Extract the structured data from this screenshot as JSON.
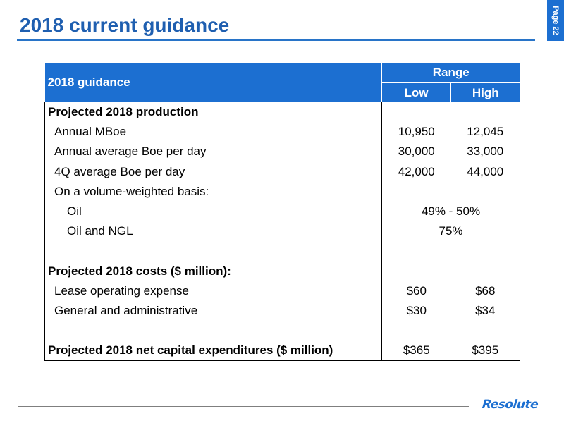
{
  "slide": {
    "title": "2018 current guidance",
    "page_label": "Page 22"
  },
  "table": {
    "header": {
      "label": "2018 guidance",
      "range": "Range",
      "low": "Low",
      "high": "High"
    },
    "rows": [
      {
        "label": "Projected 2018 production",
        "low": "",
        "high": ""
      },
      {
        "label": "Annual MBoe",
        "low": "10,950",
        "high": "12,045"
      },
      {
        "label": "Annual average Boe per day",
        "low": "30,000",
        "high": "33,000"
      },
      {
        "label": "4Q average Boe per day",
        "low": "42,000",
        "high": "44,000"
      },
      {
        "label": "On a volume-weighted basis:",
        "low": "",
        "high": ""
      },
      {
        "label": "Oil",
        "combined": "49% - 50%"
      },
      {
        "label": "Oil and NGL",
        "combined": "75%"
      },
      {
        "label": "",
        "low": "",
        "high": ""
      },
      {
        "label": "Projected 2018 costs ($ million):",
        "low": "",
        "high": ""
      },
      {
        "label": "Lease operating expense",
        "low": "$60",
        "high": "$68"
      },
      {
        "label": "General and administrative",
        "low": "$30",
        "high": "$34"
      },
      {
        "label": "",
        "low": "",
        "high": ""
      },
      {
        "label": "Projected 2018 net capital expenditures ($ million)",
        "low": "$365",
        "high": "$395"
      }
    ]
  },
  "footer": {
    "logo_text": "Resolute"
  },
  "colors": {
    "title": "#1f5fb0",
    "accent": "#1c6fd1",
    "rule": "#2874c8"
  }
}
